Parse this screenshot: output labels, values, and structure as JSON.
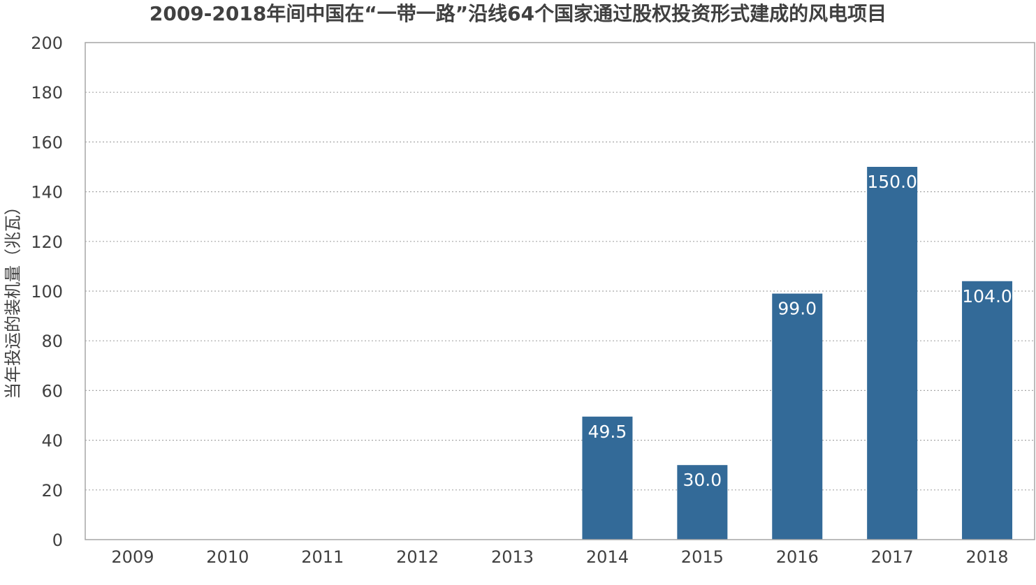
{
  "chart_data": {
    "type": "bar",
    "title": "2009-2018年间中国在“一带一路”沿线64个国家通过股权投资形式建成的风电项目",
    "xlabel": "",
    "ylabel": "当年投运的装机量（兆瓦）",
    "categories": [
      "2009",
      "2010",
      "2011",
      "2012",
      "2013",
      "2014",
      "2015",
      "2016",
      "2017",
      "2018"
    ],
    "values": [
      0,
      0,
      0,
      0,
      0,
      49.5,
      30.0,
      99.0,
      150.0,
      104.0
    ],
    "data_labels": [
      "",
      "",
      "",
      "",
      "",
      "49.5",
      "30.0",
      "99.0",
      "150.0",
      "104.0"
    ],
    "ylim": [
      0,
      200
    ],
    "yticks": [
      "0",
      "20",
      "40",
      "60",
      "80",
      "100",
      "120",
      "140",
      "160",
      "180",
      "200"
    ],
    "grid": "horizontal dotted",
    "legend": "none",
    "colors": {
      "bar": "#336a98",
      "title": "#404040",
      "axis": "#a6a6a6",
      "grid": "#a6a6a6",
      "label_text": "#ffffff"
    }
  }
}
